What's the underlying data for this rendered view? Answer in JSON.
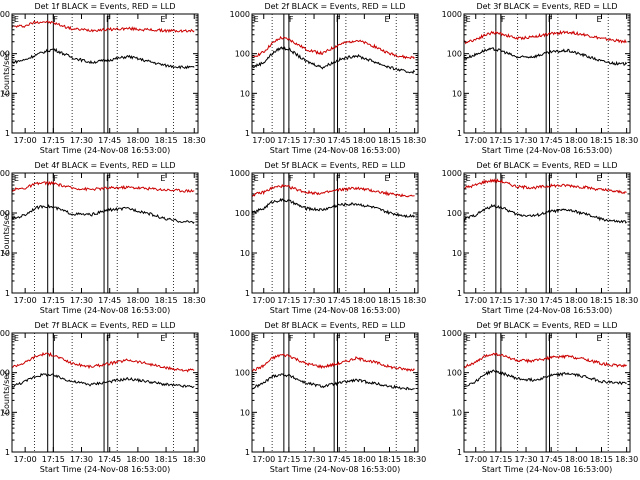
{
  "chart_data": [
    {
      "type": "line",
      "title": "Det 1f BLACK = Events, RED = LLD",
      "xlabel": "Start Time (24-Nov-08 16:53:00)",
      "ylabel": "Counts/sec",
      "ylim": [
        1,
        1000
      ],
      "y_scale": "log",
      "xlim": [
        "16:53:00",
        "18:32:00"
      ],
      "x_ticks": [
        "17:00",
        "17:15",
        "17:30",
        "17:45",
        "18:00",
        "18:15",
        "18:30"
      ],
      "y_ticks": [
        "1",
        "10",
        "100",
        "1000"
      ],
      "markers": [
        "E",
        "F",
        "F",
        "E"
      ],
      "series": [
        {
          "color": "#cc0000",
          "x": [
            "16:53",
            "17:00",
            "17:05",
            "17:10",
            "17:15",
            "17:25",
            "17:35",
            "17:45",
            "17:55",
            "18:05",
            "18:15",
            "18:25",
            "18:30"
          ],
          "values": [
            480,
            500,
            620,
            640,
            600,
            420,
            390,
            410,
            430,
            400,
            380,
            370,
            380
          ]
        },
        {
          "color": "#000000",
          "x": [
            "16:53",
            "17:00",
            "17:05",
            "17:10",
            "17:15",
            "17:25",
            "17:35",
            "17:45",
            "17:55",
            "18:05",
            "18:15",
            "18:25",
            "18:30"
          ],
          "values": [
            60,
            70,
            90,
            110,
            130,
            80,
            60,
            70,
            85,
            65,
            50,
            45,
            45
          ]
        }
      ]
    },
    {
      "type": "line",
      "title": "Det 2f BLACK = Events, RED = LLD",
      "xlabel": "Start Time (24-Nov-08 16:53:00)",
      "ylabel": "",
      "ylim": [
        1,
        1000
      ],
      "y_scale": "log",
      "xlim": [
        "16:53:00",
        "18:32:00"
      ],
      "x_ticks": [
        "17:00",
        "17:15",
        "17:30",
        "17:45",
        "18:00",
        "18:15",
        "18:30"
      ],
      "y_ticks": [
        "1",
        "10",
        "100",
        "1000"
      ],
      "markers": [
        "E",
        "F",
        "F",
        "E"
      ],
      "series": [
        {
          "color": "#cc0000",
          "x": [
            "16:53",
            "17:00",
            "17:05",
            "17:10",
            "17:15",
            "17:25",
            "17:35",
            "17:45",
            "17:55",
            "18:05",
            "18:15",
            "18:25",
            "18:30"
          ],
          "values": [
            80,
            110,
            180,
            250,
            230,
            130,
            100,
            170,
            220,
            160,
            100,
            80,
            80
          ]
        },
        {
          "color": "#000000",
          "x": [
            "16:53",
            "17:00",
            "17:05",
            "17:10",
            "17:15",
            "17:25",
            "17:35",
            "17:45",
            "17:55",
            "18:05",
            "18:15",
            "18:25",
            "18:30"
          ],
          "values": [
            45,
            60,
            100,
            140,
            130,
            65,
            45,
            70,
            90,
            65,
            45,
            35,
            35
          ]
        }
      ]
    },
    {
      "type": "line",
      "title": "Det 3f BLACK = Events, RED = LLD",
      "xlabel": "Start Time (24-Nov-08 16:53:00)",
      "ylabel": "",
      "ylim": [
        1,
        1000
      ],
      "y_scale": "log",
      "xlim": [
        "16:53:00",
        "18:32:00"
      ],
      "x_ticks": [
        "17:00",
        "17:15",
        "17:30",
        "17:45",
        "18:00",
        "18:15",
        "18:30"
      ],
      "y_ticks": [
        "1",
        "10",
        "100",
        "1000"
      ],
      "markers": [
        "E",
        "F",
        "F",
        "E"
      ],
      "series": [
        {
          "color": "#cc0000",
          "x": [
            "16:53",
            "17:00",
            "17:05",
            "17:10",
            "17:15",
            "17:25",
            "17:35",
            "17:45",
            "17:55",
            "18:05",
            "18:15",
            "18:25",
            "18:30"
          ],
          "values": [
            190,
            230,
            290,
            340,
            320,
            240,
            270,
            320,
            350,
            300,
            240,
            210,
            200
          ]
        },
        {
          "color": "#000000",
          "x": [
            "16:53",
            "17:00",
            "17:05",
            "17:10",
            "17:15",
            "17:25",
            "17:35",
            "17:45",
            "17:55",
            "18:05",
            "18:15",
            "18:25",
            "18:30"
          ],
          "values": [
            75,
            95,
            120,
            130,
            120,
            80,
            85,
            110,
            120,
            90,
            65,
            55,
            55
          ]
        }
      ]
    },
    {
      "type": "line",
      "title": "Det 4f BLACK = Events, RED = LLD",
      "xlabel": "Start Time (24-Nov-08 16:53:00)",
      "ylabel": "Counts/sec",
      "ylim": [
        1,
        1000
      ],
      "y_scale": "log",
      "xlim": [
        "16:53:00",
        "18:32:00"
      ],
      "x_ticks": [
        "17:00",
        "17:15",
        "17:30",
        "17:45",
        "18:00",
        "18:15",
        "18:30"
      ],
      "y_ticks": [
        "1",
        "10",
        "100",
        "1000"
      ],
      "markers": [
        "E",
        "F",
        "F",
        "E"
      ],
      "series": [
        {
          "color": "#cc0000",
          "x": [
            "16:53",
            "17:00",
            "17:05",
            "17:10",
            "17:15",
            "17:25",
            "17:35",
            "17:45",
            "17:55",
            "18:05",
            "18:15",
            "18:25",
            "18:30"
          ],
          "values": [
            380,
            420,
            520,
            570,
            550,
            420,
            390,
            420,
            440,
            410,
            380,
            360,
            360
          ]
        },
        {
          "color": "#000000",
          "x": [
            "16:53",
            "17:00",
            "17:05",
            "17:10",
            "17:15",
            "17:25",
            "17:35",
            "17:45",
            "17:55",
            "18:05",
            "18:15",
            "18:25",
            "18:30"
          ],
          "values": [
            70,
            90,
            130,
            150,
            140,
            95,
            90,
            120,
            130,
            100,
            70,
            60,
            60
          ]
        }
      ]
    },
    {
      "type": "line",
      "title": "Det 5f BLACK = Events, RED = LLD",
      "xlabel": "Start Time (24-Nov-08 16:53:00)",
      "ylabel": "",
      "ylim": [
        1,
        1000
      ],
      "y_scale": "log",
      "xlim": [
        "16:53:00",
        "18:32:00"
      ],
      "x_ticks": [
        "17:00",
        "17:15",
        "17:30",
        "17:45",
        "18:00",
        "18:15",
        "18:30"
      ],
      "y_ticks": [
        "1",
        "10",
        "100",
        "1000"
      ],
      "markers": [
        "E",
        "F",
        "F",
        "E"
      ],
      "series": [
        {
          "color": "#cc0000",
          "x": [
            "16:53",
            "17:00",
            "17:05",
            "17:10",
            "17:15",
            "17:25",
            "17:35",
            "17:45",
            "17:55",
            "18:05",
            "18:15",
            "18:25",
            "18:30"
          ],
          "values": [
            280,
            330,
            420,
            470,
            450,
            330,
            310,
            380,
            420,
            360,
            300,
            270,
            270
          ]
        },
        {
          "color": "#000000",
          "x": [
            "16:53",
            "17:00",
            "17:05",
            "17:10",
            "17:15",
            "17:25",
            "17:35",
            "17:45",
            "17:55",
            "18:05",
            "18:15",
            "18:25",
            "18:30"
          ],
          "values": [
            100,
            130,
            190,
            210,
            200,
            130,
            120,
            160,
            170,
            140,
            100,
            85,
            85
          ]
        }
      ]
    },
    {
      "type": "line",
      "title": "Det 6f BLACK = Events, RED = LLD",
      "xlabel": "Start Time (24-Nov-08 16:53:00)",
      "ylabel": "",
      "ylim": [
        1,
        1000
      ],
      "y_scale": "log",
      "xlim": [
        "16:53:00",
        "18:32:00"
      ],
      "x_ticks": [
        "17:00",
        "17:15",
        "17:30",
        "17:45",
        "18:00",
        "18:15",
        "18:30"
      ],
      "y_ticks": [
        "1",
        "10",
        "100",
        "1000"
      ],
      "markers": [
        "E",
        "F",
        "F",
        "E"
      ],
      "series": [
        {
          "color": "#cc0000",
          "x": [
            "16:53",
            "17:00",
            "17:05",
            "17:10",
            "17:15",
            "17:25",
            "17:35",
            "17:45",
            "17:55",
            "18:05",
            "18:15",
            "18:25",
            "18:30"
          ],
          "values": [
            420,
            500,
            600,
            650,
            620,
            450,
            430,
            480,
            490,
            440,
            380,
            340,
            330
          ]
        },
        {
          "color": "#000000",
          "x": [
            "16:53",
            "17:00",
            "17:05",
            "17:10",
            "17:15",
            "17:25",
            "17:35",
            "17:45",
            "17:55",
            "18:05",
            "18:15",
            "18:25",
            "18:30"
          ],
          "values": [
            70,
            90,
            120,
            150,
            140,
            90,
            85,
            110,
            120,
            95,
            70,
            60,
            60
          ]
        }
      ]
    },
    {
      "type": "line",
      "title": "Det 7f BLACK = Events, RED = LLD",
      "xlabel": "Start Time (24-Nov-08 16:53:00)",
      "ylabel": "Counts/sec",
      "ylim": [
        1,
        1000
      ],
      "y_scale": "log",
      "xlim": [
        "16:53:00",
        "18:32:00"
      ],
      "x_ticks": [
        "17:00",
        "17:15",
        "17:30",
        "17:45",
        "18:00",
        "18:15",
        "18:30"
      ],
      "y_ticks": [
        "1",
        "10",
        "100",
        "1000"
      ],
      "markers": [
        "E",
        "F",
        "F",
        "E"
      ],
      "series": [
        {
          "color": "#cc0000",
          "x": [
            "16:53",
            "17:00",
            "17:05",
            "17:10",
            "17:15",
            "17:25",
            "17:35",
            "17:45",
            "17:55",
            "18:05",
            "18:15",
            "18:25",
            "18:30"
          ],
          "values": [
            140,
            180,
            250,
            300,
            280,
            170,
            140,
            170,
            210,
            170,
            130,
            115,
            115
          ]
        },
        {
          "color": "#000000",
          "x": [
            "16:53",
            "17:00",
            "17:05",
            "17:10",
            "17:15",
            "17:25",
            "17:35",
            "17:45",
            "17:55",
            "18:05",
            "18:15",
            "18:25",
            "18:30"
          ],
          "values": [
            45,
            60,
            80,
            90,
            85,
            60,
            50,
            60,
            70,
            60,
            50,
            45,
            45
          ]
        }
      ]
    },
    {
      "type": "line",
      "title": "Det 8f BLACK = Events, RED = LLD",
      "xlabel": "Start Time (24-Nov-08 16:53:00)",
      "ylabel": "",
      "ylim": [
        1,
        1000
      ],
      "y_scale": "log",
      "xlim": [
        "16:53:00",
        "18:32:00"
      ],
      "x_ticks": [
        "17:00",
        "17:15",
        "17:30",
        "17:45",
        "18:00",
        "18:15",
        "18:30"
      ],
      "y_ticks": [
        "1",
        "10",
        "100",
        "1000"
      ],
      "markers": [
        "E",
        "F",
        "F",
        "E"
      ],
      "series": [
        {
          "color": "#cc0000",
          "x": [
            "16:53",
            "17:00",
            "17:05",
            "17:10",
            "17:15",
            "17:25",
            "17:35",
            "17:45",
            "17:55",
            "18:05",
            "18:15",
            "18:25",
            "18:30"
          ],
          "values": [
            110,
            150,
            230,
            280,
            270,
            170,
            140,
            170,
            230,
            190,
            140,
            120,
            120
          ]
        },
        {
          "color": "#000000",
          "x": [
            "16:53",
            "17:00",
            "17:05",
            "17:10",
            "17:15",
            "17:25",
            "17:35",
            "17:45",
            "17:55",
            "18:05",
            "18:15",
            "18:25",
            "18:30"
          ],
          "values": [
            40,
            55,
            80,
            90,
            85,
            55,
            45,
            55,
            65,
            55,
            45,
            40,
            40
          ]
        }
      ]
    },
    {
      "type": "line",
      "title": "Det 9f BLACK = Events, RED = LLD",
      "xlabel": "Start Time (24-Nov-08 16:53:00)",
      "ylabel": "",
      "ylim": [
        1,
        1000
      ],
      "y_scale": "log",
      "xlim": [
        "16:53:00",
        "18:32:00"
      ],
      "x_ticks": [
        "17:00",
        "17:15",
        "17:30",
        "17:45",
        "18:00",
        "18:15",
        "18:30"
      ],
      "y_ticks": [
        "1",
        "10",
        "100",
        "1000"
      ],
      "markers": [
        "E",
        "F",
        "F",
        "E"
      ],
      "series": [
        {
          "color": "#cc0000",
          "x": [
            "16:53",
            "17:00",
            "17:05",
            "17:10",
            "17:15",
            "17:25",
            "17:35",
            "17:45",
            "17:55",
            "18:05",
            "18:15",
            "18:25",
            "18:30"
          ],
          "values": [
            140,
            180,
            250,
            300,
            280,
            200,
            200,
            240,
            260,
            220,
            170,
            150,
            150
          ]
        },
        {
          "color": "#000000",
          "x": [
            "16:53",
            "17:00",
            "17:05",
            "17:10",
            "17:15",
            "17:25",
            "17:35",
            "17:45",
            "17:55",
            "18:05",
            "18:15",
            "18:25",
            "18:30"
          ],
          "values": [
            45,
            60,
            90,
            110,
            100,
            70,
            65,
            85,
            95,
            80,
            60,
            55,
            55
          ]
        }
      ]
    }
  ]
}
